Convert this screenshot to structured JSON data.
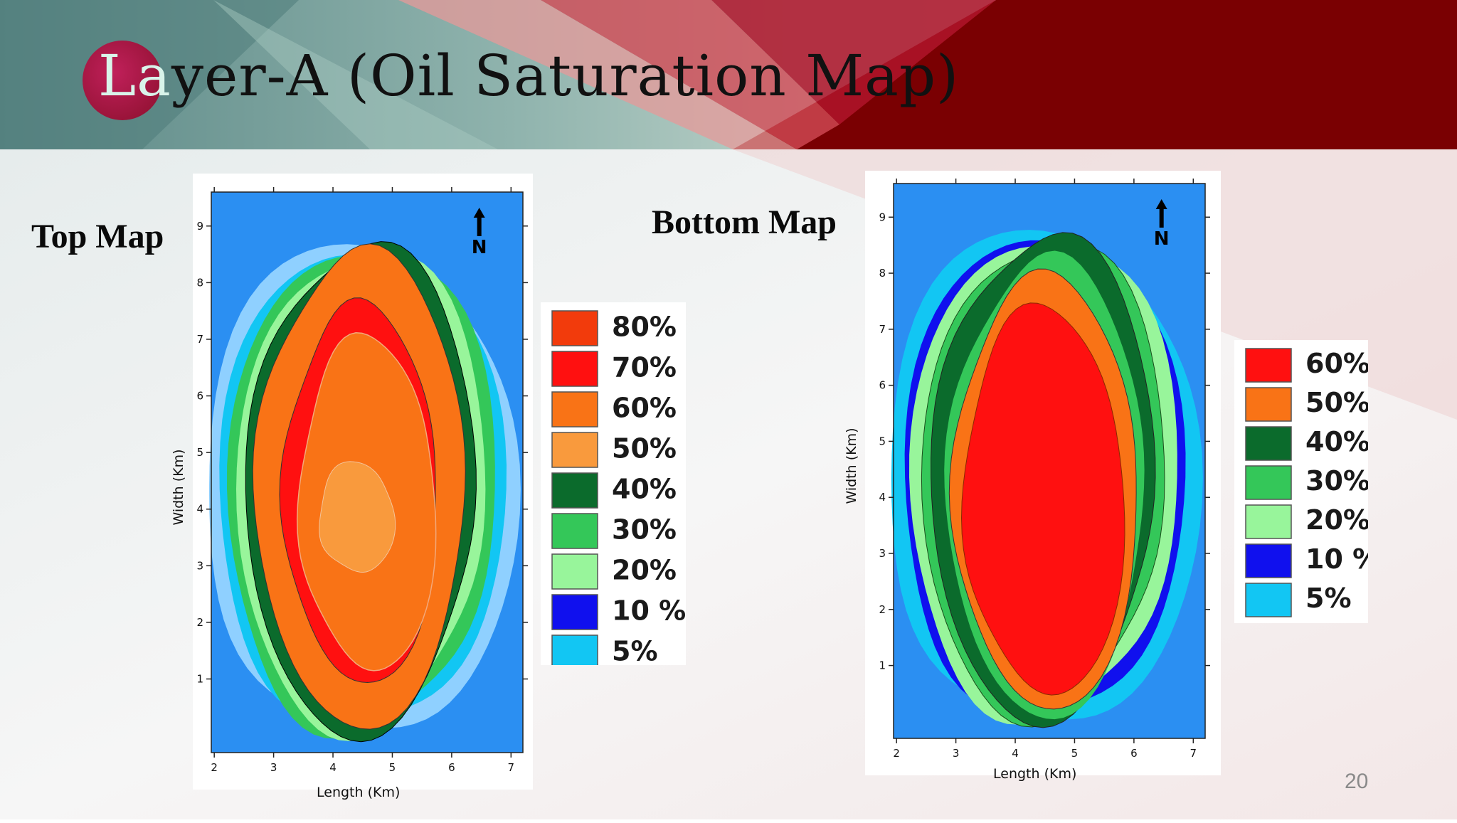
{
  "slide": {
    "title_prefix": "La",
    "title_rest": "yer-A (Oil Saturation Map)",
    "page_number": "20",
    "colors": {
      "banner_left": "#5f8f8d",
      "banner_right": "#7a0000",
      "accent_circle": "#a01030"
    }
  },
  "chart_data": [
    {
      "type": "heatmap",
      "title": "Top Map",
      "xlabel": "Length (Km)",
      "ylabel": "Width (Km)",
      "xlim": [
        1.95,
        7.2
      ],
      "ylim": [
        -0.3,
        9.6
      ],
      "x_ticks": [
        2,
        3,
        4,
        5,
        6,
        7
      ],
      "y_ticks": [
        1,
        2,
        3,
        4,
        5,
        6,
        7,
        8,
        9
      ],
      "north_arrow": "N",
      "legend_labels": [
        "80%",
        "70%",
        "60%",
        "50%",
        "40%",
        "30%",
        "20%",
        "10 %",
        "5%"
      ],
      "legend_colors": [
        "#f23b0c",
        "#ff1010",
        "#f97316",
        "#f99a3d",
        "#0b6b2c",
        "#34c759",
        "#98f59b",
        "#1010ee",
        "#12c6f3"
      ]
    },
    {
      "type": "heatmap",
      "title": "Bottom Map",
      "xlabel": "Length (Km)",
      "ylabel": "Width (Km)",
      "xlim": [
        1.95,
        7.2
      ],
      "ylim": [
        -0.3,
        9.6
      ],
      "x_ticks": [
        2,
        3,
        4,
        5,
        6,
        7
      ],
      "y_ticks": [
        1,
        2,
        3,
        4,
        5,
        6,
        7,
        8,
        9
      ],
      "north_arrow": "N",
      "legend_labels": [
        "60%",
        "50%",
        "40%",
        "30%",
        "20%",
        "10 %",
        "5%"
      ],
      "legend_colors": [
        "#ff1010",
        "#f97316",
        "#0b6b2c",
        "#34c759",
        "#98f59b",
        "#1010ee",
        "#12c6f3"
      ]
    }
  ]
}
